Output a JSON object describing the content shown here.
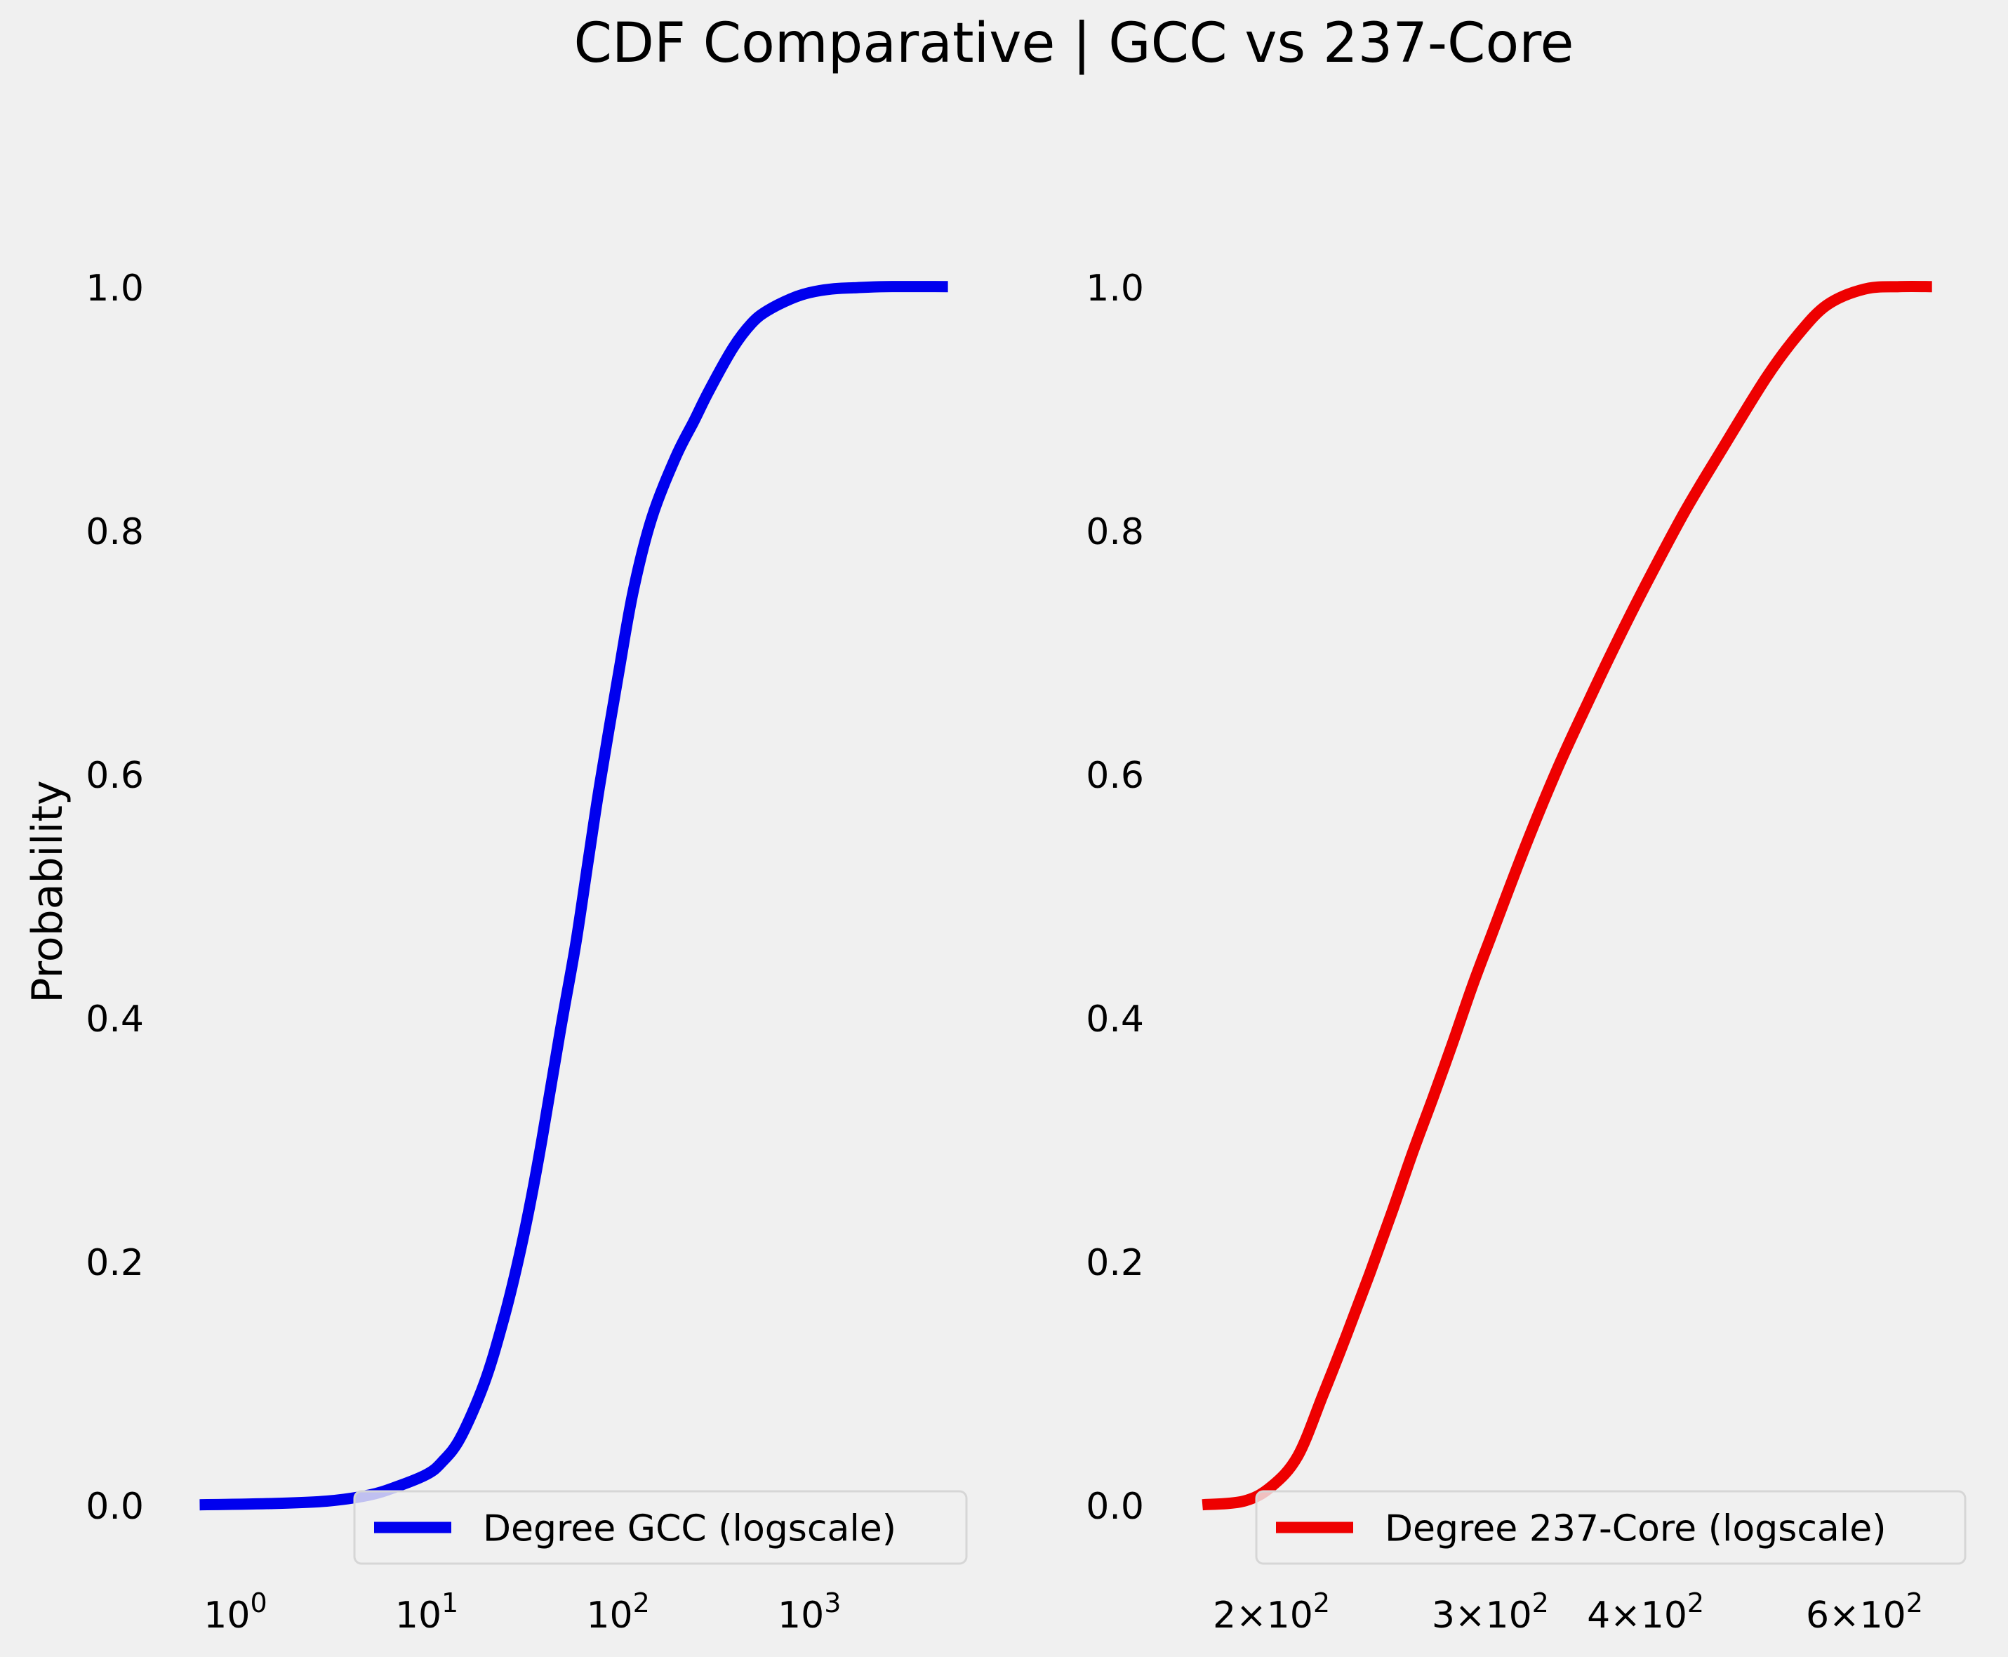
{
  "title": "CDF Comparative | GCC vs 237-Core",
  "ylabel": "Probability",
  "chart_data": [
    {
      "type": "line",
      "xscale": "log",
      "xlim": [
        0.6,
        5500
      ],
      "ylim": [
        -0.05,
        1.12
      ],
      "grid": false,
      "yticks": [
        "0.0",
        "0.2",
        "0.4",
        "0.6",
        "0.8",
        "1.0"
      ],
      "xticks": [
        {
          "value": 1,
          "base": "10",
          "exp": "0"
        },
        {
          "value": 10,
          "base": "10",
          "exp": "1"
        },
        {
          "value": 100,
          "base": "10",
          "exp": "2"
        },
        {
          "value": 1000,
          "base": "10",
          "exp": "3"
        }
      ],
      "legend_location": "lower right",
      "series": [
        {
          "name": "Degree GCC (logscale)",
          "color": "#0000ee",
          "x": [
            0.65,
            1.5,
            3,
            5,
            7,
            10,
            12,
            15,
            20,
            25,
            30,
            35,
            40,
            50,
            60,
            70,
            80,
            100,
            120,
            150,
            200,
            250,
            300,
            400,
            500,
            600,
            800,
            1000,
            1300,
            1700,
            2500,
            5300
          ],
          "y": [
            0.0,
            0.001,
            0.003,
            0.008,
            0.015,
            0.025,
            0.035,
            0.055,
            0.1,
            0.15,
            0.2,
            0.25,
            0.3,
            0.39,
            0.46,
            0.53,
            0.59,
            0.68,
            0.75,
            0.81,
            0.86,
            0.89,
            0.915,
            0.95,
            0.97,
            0.98,
            0.99,
            0.995,
            0.998,
            0.999,
            1.0,
            1.0
          ]
        }
      ]
    },
    {
      "type": "line",
      "xscale": "log",
      "xlim": [
        173,
        700
      ],
      "ylim": [
        -0.05,
        1.12
      ],
      "grid": false,
      "yticks": [
        "0.0",
        "0.2",
        "0.4",
        "0.6",
        "0.8",
        "1.0"
      ],
      "xticks": [
        {
          "value": 200,
          "coef": "2",
          "base": "10",
          "exp": "2"
        },
        {
          "value": 300,
          "coef": "3",
          "base": "10",
          "exp": "2"
        },
        {
          "value": 400,
          "coef": "4",
          "base": "10",
          "exp": "2"
        },
        {
          "value": 600,
          "coef": "6",
          "base": "10",
          "exp": "2"
        }
      ],
      "legend_location": "lower right",
      "series": [
        {
          "name": "Degree 237-Core (logscale)",
          "color": "#ee0000",
          "x": [
            176,
            190,
            200,
            210,
            220,
            230,
            240,
            250,
            260,
            270,
            280,
            290,
            300,
            320,
            340,
            360,
            380,
            400,
            430,
            460,
            500,
            530,
            560,
            600,
            640,
            680
          ],
          "y": [
            0.0,
            0.003,
            0.015,
            0.04,
            0.09,
            0.14,
            0.19,
            0.24,
            0.29,
            0.335,
            0.38,
            0.425,
            0.465,
            0.54,
            0.605,
            0.66,
            0.71,
            0.755,
            0.815,
            0.865,
            0.925,
            0.96,
            0.985,
            0.998,
            1.0,
            1.0
          ]
        }
      ]
    }
  ]
}
